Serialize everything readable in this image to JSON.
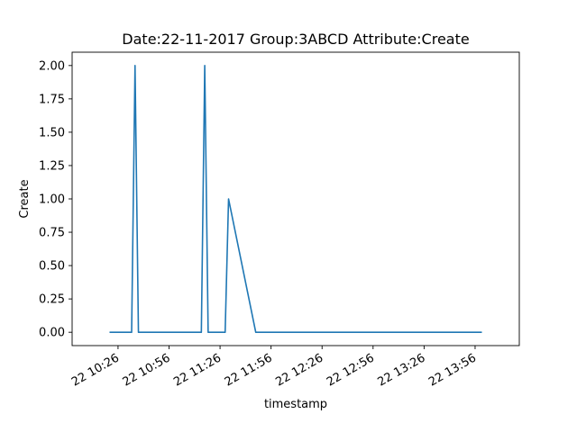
{
  "chart_data": {
    "type": "line",
    "title": "Date:22-11-2017  Group:3ABCD Attribute:Create",
    "xlabel": "timestamp",
    "ylabel": "Create",
    "x_unit": "time",
    "xlim": [
      "10:21",
      "14:00"
    ],
    "ylim": [
      -0.1,
      2.1
    ],
    "xticks": [
      "10:26",
      "10:56",
      "11:26",
      "11:56",
      "12:26",
      "12:56",
      "13:26",
      "13:56"
    ],
    "xtick_labels": [
      "22 10:26",
      "22 10:56",
      "22 11:26",
      "22 11:56",
      "22 12:26",
      "22 12:56",
      "22 13:26",
      "22 13:56"
    ],
    "yticks": [
      0.0,
      0.25,
      0.5,
      0.75,
      1.0,
      1.25,
      1.5,
      1.75,
      2.0
    ],
    "ytick_labels": [
      "0.00",
      "0.25",
      "0.50",
      "0.75",
      "1.00",
      "1.25",
      "1.50",
      "1.75",
      "2.00"
    ],
    "grid": false,
    "series": [
      {
        "color": "#1f77b4",
        "x": [
          "10:21",
          "10:34",
          "10:36",
          "10:38",
          "10:55",
          "10:56",
          "11:15",
          "11:17",
          "11:19",
          "11:29",
          "11:31",
          "11:47",
          "12:20",
          "14:00"
        ],
        "y": [
          0,
          0,
          2,
          0,
          0,
          0,
          0,
          2,
          0,
          0,
          1,
          0,
          0,
          0
        ]
      }
    ]
  }
}
